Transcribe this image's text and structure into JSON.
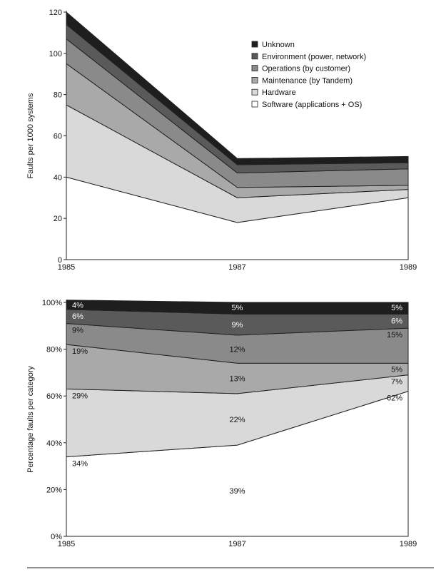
{
  "chart_data": [
    {
      "type": "area",
      "stacked": true,
      "x": [
        "1985",
        "1987",
        "1989"
      ],
      "ylabel": "Faults per 1000 systems",
      "ylim": [
        0,
        120
      ],
      "yticks": [
        "0",
        "20",
        "40",
        "60",
        "80",
        "100",
        "120"
      ],
      "legend_position": "top-right",
      "series": [
        {
          "name": "Software (applications + OS)",
          "values": [
            40,
            18,
            30
          ],
          "color": "#ffffff"
        },
        {
          "name": "Hardware",
          "values": [
            35,
            12,
            4
          ],
          "color": "#d9d9d9"
        },
        {
          "name": "Maintenance (by Tandem)",
          "values": [
            20,
            5,
            2
          ],
          "color": "#a9a9a9"
        },
        {
          "name": "Operations (by customer)",
          "values": [
            12,
            7,
            8
          ],
          "color": "#8a8a8a"
        },
        {
          "name": "Environment (power, network)",
          "values": [
            7,
            4,
            3
          ],
          "color": "#5a5a5a"
        },
        {
          "name": "Unknown",
          "values": [
            6,
            3,
            3
          ],
          "color": "#1e1e1e"
        }
      ]
    },
    {
      "type": "area",
      "stacked": true,
      "percent": true,
      "x": [
        "1985",
        "1987",
        "1989"
      ],
      "ylabel": "Percentage faults per category",
      "ylim": [
        0,
        100
      ],
      "yticks": [
        "0%",
        "20%",
        "40%",
        "60%",
        "80%",
        "100%"
      ],
      "series": [
        {
          "name": "Software (applications + OS)",
          "values": [
            34,
            39,
            62
          ],
          "labels": [
            "34%",
            "39%",
            "62%"
          ],
          "color": "#ffffff"
        },
        {
          "name": "Hardware",
          "values": [
            29,
            22,
            7
          ],
          "labels": [
            "29%",
            "22%",
            "7%"
          ],
          "color": "#d9d9d9"
        },
        {
          "name": "Maintenance (by Tandem)",
          "values": [
            19,
            13,
            5
          ],
          "labels": [
            "19%",
            "13%",
            "5%"
          ],
          "color": "#a9a9a9"
        },
        {
          "name": "Operations (by customer)",
          "values": [
            9,
            12,
            15
          ],
          "labels": [
            "9%",
            "12%",
            "15%"
          ],
          "color": "#8a8a8a"
        },
        {
          "name": "Environment (power, network)",
          "values": [
            6,
            9,
            6
          ],
          "labels": [
            "6%",
            "9%",
            "6%"
          ],
          "color": "#5a5a5a"
        },
        {
          "name": "Unknown",
          "values": [
            4,
            5,
            5
          ],
          "labels": [
            "4%",
            "5%",
            "5%"
          ],
          "color": "#1e1e1e"
        }
      ]
    }
  ]
}
